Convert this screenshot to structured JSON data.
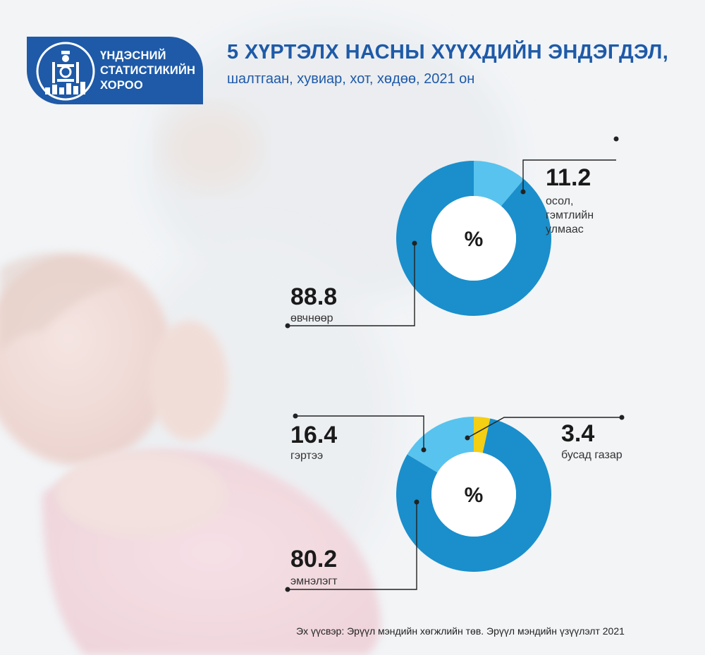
{
  "logo": {
    "line1": "ҮНДЭСНИЙ",
    "line2": "СТАТИСТИКИЙН",
    "line3": "ХОРОО"
  },
  "header": {
    "title": "5 ХҮРТЭЛХ НАСНЫ ХҮҮХДИЙН ЭНДЭГДЭЛ,",
    "subtitle": "шалтгаан, хувиар, хот, хөдөө, 2021 он"
  },
  "colors": {
    "brand_blue": "#1e5aa8",
    "series_dark_blue": "#1a8fcc",
    "series_light_blue": "#58c3ee",
    "series_yellow": "#f4cf14"
  },
  "chart_data": [
    {
      "type": "pie",
      "donut": true,
      "center_label": "%",
      "slices": [
        {
          "label": "осол, гэмтлийн улмаас",
          "value": 11.2,
          "value_text": "11.2",
          "color": "#58c3ee"
        },
        {
          "label": "өвчнөөр",
          "value": 88.8,
          "value_text": "88.8",
          "color": "#1a8fcc"
        }
      ]
    },
    {
      "type": "pie",
      "donut": true,
      "center_label": "%",
      "slices": [
        {
          "label": "бусад газар",
          "value": 3.4,
          "value_text": "3.4",
          "color": "#f4cf14"
        },
        {
          "label": "эмнэлэгт",
          "value": 80.2,
          "value_text": "80.2",
          "color": "#1a8fcc"
        },
        {
          "label": "гэртээ",
          "value": 16.4,
          "value_text": "16.4",
          "color": "#58c3ee"
        }
      ]
    }
  ],
  "source": "Эх үүсвэр: Эрүүл мэндийн хөгжлийн төв. Эрүүл мэндийн үзүүлэлт 2021"
}
